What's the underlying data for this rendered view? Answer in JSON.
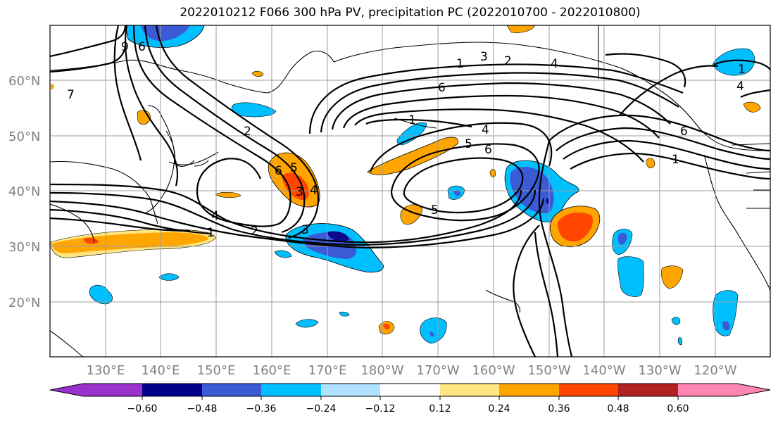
{
  "title": "2022010212 F066 300 hPa PV, precipitation PC (2022010700 - 2022010800)",
  "map": {
    "lat_labels": [
      "60°N",
      "50°N",
      "40°N",
      "30°N",
      "20°N"
    ],
    "lon_labels": [
      "130°E",
      "140°E",
      "150°E",
      "160°E",
      "170°E",
      "180°W",
      "170°W",
      "160°W",
      "150°W",
      "140°W",
      "130°W",
      "120°W"
    ],
    "contour_labels": [
      "9",
      "7",
      "1",
      "2",
      "3",
      "4",
      "5",
      "6",
      "1",
      "3",
      "2",
      "4",
      "6",
      "1",
      "5",
      "6",
      "4",
      "4",
      "6",
      "1",
      "1",
      "2",
      "3",
      "4",
      "5",
      "6",
      "6",
      "6"
    ]
  },
  "colorbar": {
    "ticks": [
      "−0.60",
      "−0.48",
      "−0.36",
      "−0.24",
      "−0.12",
      "0.12",
      "0.24",
      "0.36",
      "0.48",
      "0.60"
    ],
    "colors": [
      "#9932cc",
      "#00008b",
      "#3b5bd6",
      "#00bfff",
      "#b0e2ff",
      "#ffffff",
      "#ffe680",
      "#ffa500",
      "#ff4500",
      "#b22222",
      "#ff85b3"
    ]
  },
  "colors": {
    "blue_dark": "#0a0a8a",
    "blue_mid": "#3b5bd6",
    "blue_light": "#00bfff",
    "blue_pale": "#b0e2ff",
    "yellow": "#ffe680",
    "orange": "#ffa500",
    "red": "#ff4500"
  }
}
